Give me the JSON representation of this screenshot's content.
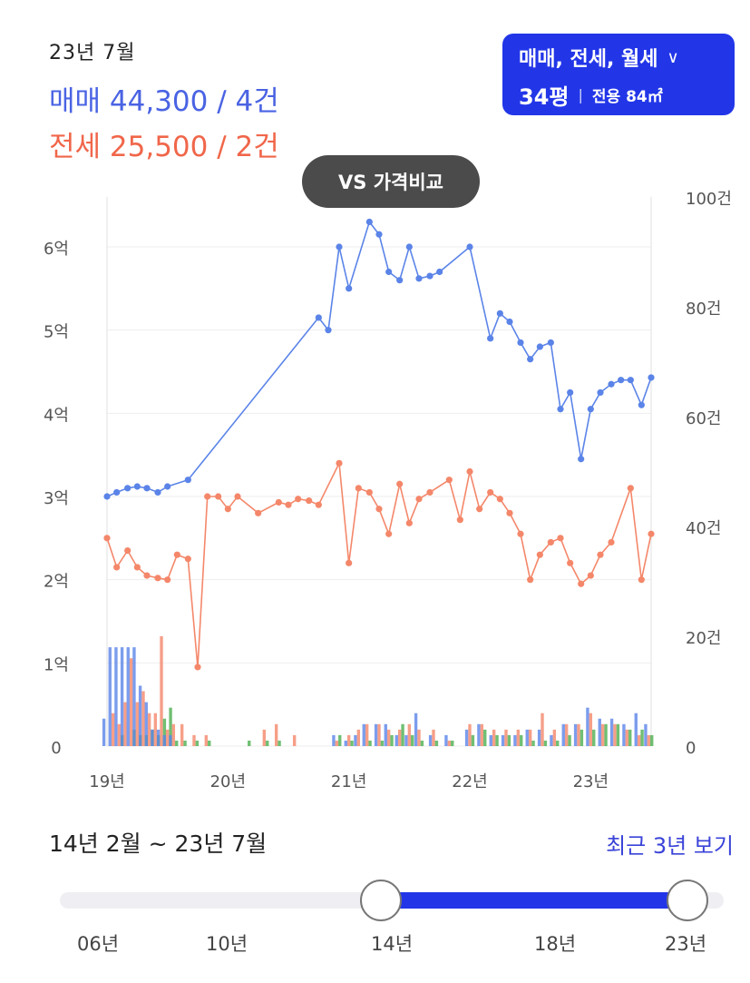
{
  "header": {
    "date": "23년 7월",
    "sale_label": "매매 44,300 / 4건",
    "jeonse_label": "전세 25,500 / 2건"
  },
  "filter": {
    "types": "매매, 전세, 월세",
    "size": "34평",
    "area": "전용 84㎡"
  },
  "compare_button": "VS 가격비교",
  "colors": {
    "sale": "#5b84e8",
    "jeonse": "#f4876a",
    "accent": "#2236e8",
    "volume_green": "#4caf50",
    "volume_purple": "#a77bd6"
  },
  "chart_data": {
    "type": "line",
    "x_tick_labels": [
      "19년",
      "20년",
      "21년",
      "22년",
      "23년"
    ],
    "y_left_ticks": [
      "0",
      "1억",
      "2억",
      "3억",
      "4억",
      "5억",
      "6억"
    ],
    "y_left_range": [
      0,
      6.6
    ],
    "y_right_ticks": [
      "0",
      "20건",
      "40건",
      "60건",
      "80건",
      "100건"
    ],
    "y_right_range": [
      0,
      100
    ],
    "grid": true,
    "series": [
      {
        "name": "매매",
        "points": [
          [
            2019.0,
            3.0
          ],
          [
            2019.08,
            3.05
          ],
          [
            2019.17,
            3.1
          ],
          [
            2019.25,
            3.12
          ],
          [
            2019.33,
            3.1
          ],
          [
            2019.42,
            3.05
          ],
          [
            2019.5,
            3.12
          ],
          [
            2019.67,
            3.2
          ],
          [
            2020.75,
            5.15
          ],
          [
            2020.83,
            5.0
          ],
          [
            2020.92,
            6.0
          ],
          [
            2021.0,
            5.5
          ],
          [
            2021.17,
            6.3
          ],
          [
            2021.25,
            6.15
          ],
          [
            2021.33,
            5.7
          ],
          [
            2021.42,
            5.6
          ],
          [
            2021.5,
            6.0
          ],
          [
            2021.58,
            5.62
          ],
          [
            2021.67,
            5.65
          ],
          [
            2021.75,
            5.7
          ],
          [
            2022.0,
            6.0
          ],
          [
            2022.17,
            4.9
          ],
          [
            2022.25,
            5.2
          ],
          [
            2022.33,
            5.1
          ],
          [
            2022.42,
            4.85
          ],
          [
            2022.5,
            4.65
          ],
          [
            2022.58,
            4.8
          ],
          [
            2022.67,
            4.85
          ],
          [
            2022.75,
            4.05
          ],
          [
            2022.83,
            4.25
          ],
          [
            2022.92,
            3.45
          ],
          [
            2023.0,
            4.05
          ],
          [
            2023.08,
            4.25
          ],
          [
            2023.17,
            4.35
          ],
          [
            2023.25,
            4.4
          ],
          [
            2023.33,
            4.4
          ],
          [
            2023.42,
            4.1
          ],
          [
            2023.5,
            4.43
          ]
        ]
      },
      {
        "name": "전세",
        "points": [
          [
            2019.0,
            2.5
          ],
          [
            2019.08,
            2.15
          ],
          [
            2019.17,
            2.35
          ],
          [
            2019.25,
            2.15
          ],
          [
            2019.33,
            2.05
          ],
          [
            2019.42,
            2.02
          ],
          [
            2019.5,
            2.0
          ],
          [
            2019.58,
            2.3
          ],
          [
            2019.67,
            2.25
          ],
          [
            2019.75,
            0.95
          ],
          [
            2019.83,
            3.0
          ],
          [
            2019.92,
            3.0
          ],
          [
            2020.0,
            2.85
          ],
          [
            2020.08,
            3.0
          ],
          [
            2020.25,
            2.8
          ],
          [
            2020.42,
            2.93
          ],
          [
            2020.5,
            2.9
          ],
          [
            2020.58,
            2.97
          ],
          [
            2020.67,
            2.95
          ],
          [
            2020.75,
            2.9
          ],
          [
            2020.92,
            3.4
          ],
          [
            2021.0,
            2.2
          ],
          [
            2021.08,
            3.1
          ],
          [
            2021.17,
            3.05
          ],
          [
            2021.25,
            2.85
          ],
          [
            2021.33,
            2.55
          ],
          [
            2021.42,
            3.15
          ],
          [
            2021.5,
            2.68
          ],
          [
            2021.58,
            2.97
          ],
          [
            2021.67,
            3.05
          ],
          [
            2021.83,
            3.2
          ],
          [
            2021.92,
            2.72
          ],
          [
            2022.0,
            3.3
          ],
          [
            2022.08,
            2.85
          ],
          [
            2022.17,
            3.05
          ],
          [
            2022.25,
            2.97
          ],
          [
            2022.33,
            2.8
          ],
          [
            2022.42,
            2.55
          ],
          [
            2022.5,
            2.0
          ],
          [
            2022.58,
            2.3
          ],
          [
            2022.67,
            2.45
          ],
          [
            2022.75,
            2.5
          ],
          [
            2022.83,
            2.2
          ],
          [
            2022.92,
            1.95
          ],
          [
            2023.0,
            2.05
          ],
          [
            2023.08,
            2.3
          ],
          [
            2023.17,
            2.45
          ],
          [
            2023.33,
            3.1
          ],
          [
            2023.42,
            2.0
          ],
          [
            2023.5,
            2.55
          ]
        ]
      }
    ],
    "volume": [
      {
        "x": 2019.0,
        "sale": 5,
        "jeonse": 0,
        "other": 0
      },
      {
        "x": 2019.05,
        "sale": 18,
        "jeonse": 6,
        "other": 0
      },
      {
        "x": 2019.1,
        "sale": 18,
        "jeonse": 4,
        "other": 2
      },
      {
        "x": 2019.15,
        "sale": 18,
        "jeonse": 8,
        "other": 0
      },
      {
        "x": 2019.2,
        "sale": 18,
        "jeonse": 16,
        "other": 3
      },
      {
        "x": 2019.25,
        "sale": 18,
        "jeonse": 8,
        "other": 2
      },
      {
        "x": 2019.3,
        "sale": 11,
        "jeonse": 10,
        "other": 2
      },
      {
        "x": 2019.35,
        "sale": 8,
        "jeonse": 6,
        "other": 3
      },
      {
        "x": 2019.4,
        "sale": 3,
        "jeonse": 6,
        "other": 2
      },
      {
        "x": 2019.45,
        "sale": 3,
        "jeonse": 20,
        "other": 5
      },
      {
        "x": 2019.5,
        "sale": 2,
        "jeonse": 3,
        "other": 7
      },
      {
        "x": 2019.55,
        "sale": 2,
        "jeonse": 4,
        "other": 1
      },
      {
        "x": 2019.62,
        "sale": 0,
        "jeonse": 4,
        "other": 1
      },
      {
        "x": 2019.72,
        "sale": 0,
        "jeonse": 2,
        "other": 1
      },
      {
        "x": 2019.82,
        "sale": 0,
        "jeonse": 2,
        "other": 1
      },
      {
        "x": 2020.15,
        "sale": 0,
        "jeonse": 0,
        "other": 1
      },
      {
        "x": 2020.3,
        "sale": 0,
        "jeonse": 3,
        "other": 1
      },
      {
        "x": 2020.4,
        "sale": 0,
        "jeonse": 4,
        "other": 1
      },
      {
        "x": 2020.55,
        "sale": 0,
        "jeonse": 2,
        "other": 0
      },
      {
        "x": 2020.9,
        "sale": 2,
        "jeonse": 1,
        "other": 2
      },
      {
        "x": 2021.0,
        "sale": 1,
        "jeonse": 2,
        "other": 1
      },
      {
        "x": 2021.08,
        "sale": 2,
        "jeonse": 3,
        "other": 0
      },
      {
        "x": 2021.15,
        "sale": 4,
        "jeonse": 4,
        "other": 1
      },
      {
        "x": 2021.25,
        "sale": 4,
        "jeonse": 4,
        "other": 1
      },
      {
        "x": 2021.33,
        "sale": 4,
        "jeonse": 3,
        "other": 2
      },
      {
        "x": 2021.42,
        "sale": 2,
        "jeonse": 3,
        "other": 4
      },
      {
        "x": 2021.5,
        "sale": 2,
        "jeonse": 4,
        "other": 2
      },
      {
        "x": 2021.58,
        "sale": 6,
        "jeonse": 3,
        "other": 1
      },
      {
        "x": 2021.7,
        "sale": 2,
        "jeonse": 3,
        "other": 1
      },
      {
        "x": 2021.83,
        "sale": 2,
        "jeonse": 1,
        "other": 1
      },
      {
        "x": 2022.0,
        "sale": 3,
        "jeonse": 4,
        "other": 2
      },
      {
        "x": 2022.1,
        "sale": 4,
        "jeonse": 4,
        "other": 3
      },
      {
        "x": 2022.2,
        "sale": 2,
        "jeonse": 3,
        "other": 2
      },
      {
        "x": 2022.3,
        "sale": 2,
        "jeonse": 3,
        "other": 2
      },
      {
        "x": 2022.4,
        "sale": 2,
        "jeonse": 3,
        "other": 2
      },
      {
        "x": 2022.5,
        "sale": 3,
        "jeonse": 3,
        "other": 1
      },
      {
        "x": 2022.6,
        "sale": 3,
        "jeonse": 6,
        "other": 1
      },
      {
        "x": 2022.7,
        "sale": 2,
        "jeonse": 3,
        "other": 1
      },
      {
        "x": 2022.8,
        "sale": 4,
        "jeonse": 4,
        "other": 2
      },
      {
        "x": 2022.9,
        "sale": 4,
        "jeonse": 4,
        "other": 3
      },
      {
        "x": 2023.0,
        "sale": 7,
        "jeonse": 6,
        "other": 3
      },
      {
        "x": 2023.1,
        "sale": 5,
        "jeonse": 4,
        "other": 4
      },
      {
        "x": 2023.2,
        "sale": 5,
        "jeonse": 4,
        "other": 4
      },
      {
        "x": 2023.3,
        "sale": 4,
        "jeonse": 3,
        "other": 3
      },
      {
        "x": 2023.4,
        "sale": 6,
        "jeonse": 2,
        "other": 3
      },
      {
        "x": 2023.48,
        "sale": 4,
        "jeonse": 2,
        "other": 2
      }
    ]
  },
  "range": {
    "label": "14년 2월 ~ 23년 7월",
    "recent_link": "최근 3년 보기",
    "ticks": [
      "06년",
      "10년",
      "14년",
      "18년",
      "23년"
    ],
    "start_value": "14년",
    "end_value": "23년"
  }
}
